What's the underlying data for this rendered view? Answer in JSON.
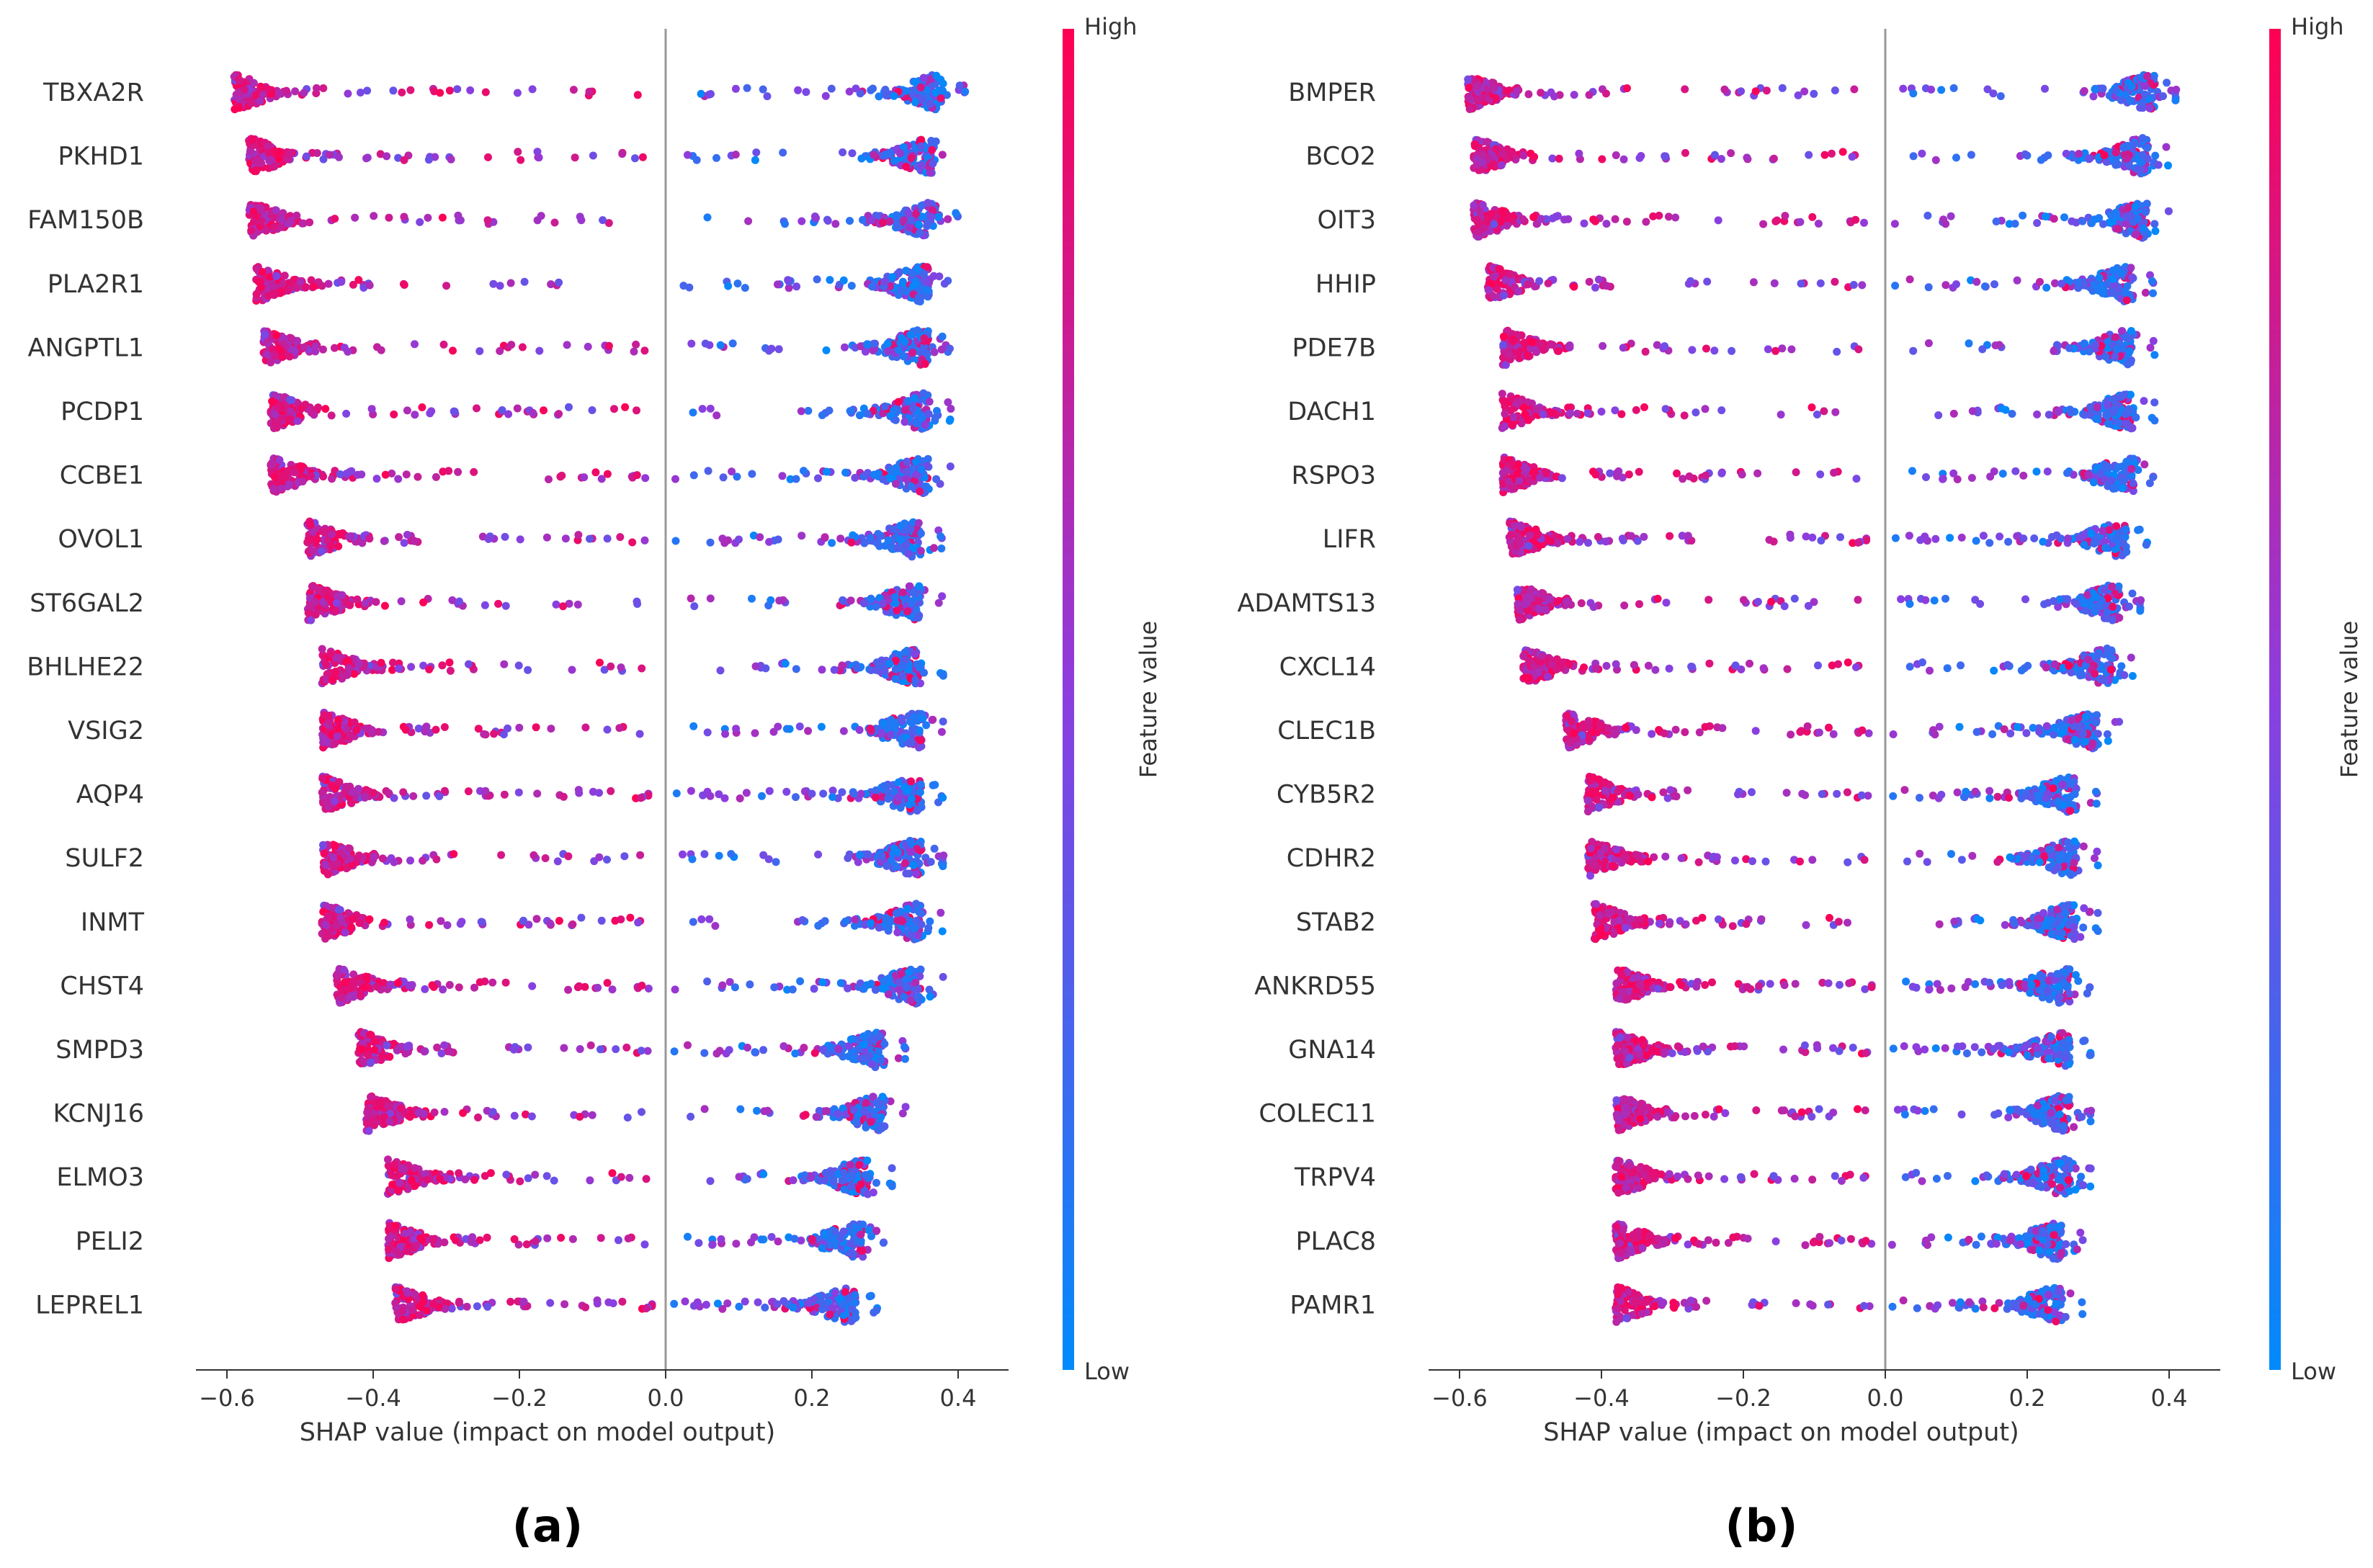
{
  "figure": {
    "panel_a_caption": "(a)",
    "panel_b_caption": "(b)"
  },
  "colors": {
    "high": "#ff0052",
    "low": "#008bfb",
    "mid": "#8b3ee0",
    "zero_line": "#999999",
    "axis": "#333333"
  },
  "chart_data": [
    {
      "type": "scatter",
      "subtype": "shap-beeswarm",
      "panel": "(a)",
      "xlabel": "SHAP value (impact on model output)",
      "xlim": [
        -0.66,
        0.47
      ],
      "xticks": [
        -0.6,
        -0.4,
        -0.2,
        0.0,
        0.2,
        0.4
      ],
      "xtick_labels": [
        "−0.6",
        "−0.4",
        "−0.2",
        "0.0",
        "0.2",
        "0.4"
      ],
      "colorbar": {
        "label": "Feature value",
        "high": "High",
        "low": "Low"
      },
      "features": [
        {
          "name": "TBXA2R",
          "min": -0.59,
          "max": 0.41
        },
        {
          "name": "PKHD1",
          "min": -0.57,
          "max": 0.4
        },
        {
          "name": "FAM150B",
          "min": -0.57,
          "max": 0.4
        },
        {
          "name": "PLA2R1",
          "min": -0.56,
          "max": 0.39
        },
        {
          "name": "ANGPTL1",
          "min": -0.55,
          "max": 0.39
        },
        {
          "name": "PCDP1",
          "min": -0.54,
          "max": 0.39
        },
        {
          "name": "CCBE1",
          "min": -0.54,
          "max": 0.39
        },
        {
          "name": "OVOL1",
          "min": -0.49,
          "max": 0.38
        },
        {
          "name": "ST6GAL2",
          "min": -0.49,
          "max": 0.38
        },
        {
          "name": "BHLHE22",
          "min": -0.47,
          "max": 0.38
        },
        {
          "name": "VSIG2",
          "min": -0.47,
          "max": 0.38
        },
        {
          "name": "AQP4",
          "min": -0.47,
          "max": 0.38
        },
        {
          "name": "SULF2",
          "min": -0.47,
          "max": 0.38
        },
        {
          "name": "INMT",
          "min": -0.47,
          "max": 0.38
        },
        {
          "name": "CHST4",
          "min": -0.45,
          "max": 0.38
        },
        {
          "name": "SMPD3",
          "min": -0.42,
          "max": 0.33
        },
        {
          "name": "KCNJ16",
          "min": -0.41,
          "max": 0.33
        },
        {
          "name": "ELMO3",
          "min": -0.38,
          "max": 0.31
        },
        {
          "name": "PELI2",
          "min": -0.38,
          "max": 0.3
        },
        {
          "name": "LEPREL1",
          "min": -0.37,
          "max": 0.29
        }
      ]
    },
    {
      "type": "scatter",
      "subtype": "shap-beeswarm",
      "panel": "(b)",
      "xlabel": "SHAP value (impact on model output)",
      "xlim": [
        -0.64,
        0.47
      ],
      "xticks": [
        -0.6,
        -0.4,
        -0.2,
        0.0,
        0.2,
        0.4
      ],
      "xtick_labels": [
        "−0.6",
        "−0.4",
        "−0.2",
        "0.0",
        "0.2",
        "0.4"
      ],
      "colorbar": {
        "label": "Feature value",
        "high": "High",
        "low": "Low"
      },
      "features": [
        {
          "name": "BMPER",
          "min": -0.59,
          "max": 0.41
        },
        {
          "name": "BCO2",
          "min": -0.58,
          "max": 0.4
        },
        {
          "name": "OIT3",
          "min": -0.58,
          "max": 0.4
        },
        {
          "name": "HHIP",
          "min": -0.56,
          "max": 0.38
        },
        {
          "name": "PDE7B",
          "min": -0.54,
          "max": 0.38
        },
        {
          "name": "DACH1",
          "min": -0.54,
          "max": 0.38
        },
        {
          "name": "RSPO3",
          "min": -0.54,
          "max": 0.38
        },
        {
          "name": "LIFR",
          "min": -0.53,
          "max": 0.37
        },
        {
          "name": "ADAMTS13",
          "min": -0.52,
          "max": 0.36
        },
        {
          "name": "CXCL14",
          "min": -0.51,
          "max": 0.35
        },
        {
          "name": "CLEC1B",
          "min": -0.45,
          "max": 0.33
        },
        {
          "name": "CYB5R2",
          "min": -0.42,
          "max": 0.3
        },
        {
          "name": "CDHR2",
          "min": -0.42,
          "max": 0.3
        },
        {
          "name": "STAB2",
          "min": -0.41,
          "max": 0.3
        },
        {
          "name": "ANKRD55",
          "min": -0.38,
          "max": 0.29
        },
        {
          "name": "GNA14",
          "min": -0.38,
          "max": 0.29
        },
        {
          "name": "COLEC11",
          "min": -0.38,
          "max": 0.29
        },
        {
          "name": "TRPV4",
          "min": -0.38,
          "max": 0.29
        },
        {
          "name": "PLAC8",
          "min": -0.38,
          "max": 0.28
        },
        {
          "name": "PAMR1",
          "min": -0.38,
          "max": 0.28
        }
      ]
    }
  ]
}
